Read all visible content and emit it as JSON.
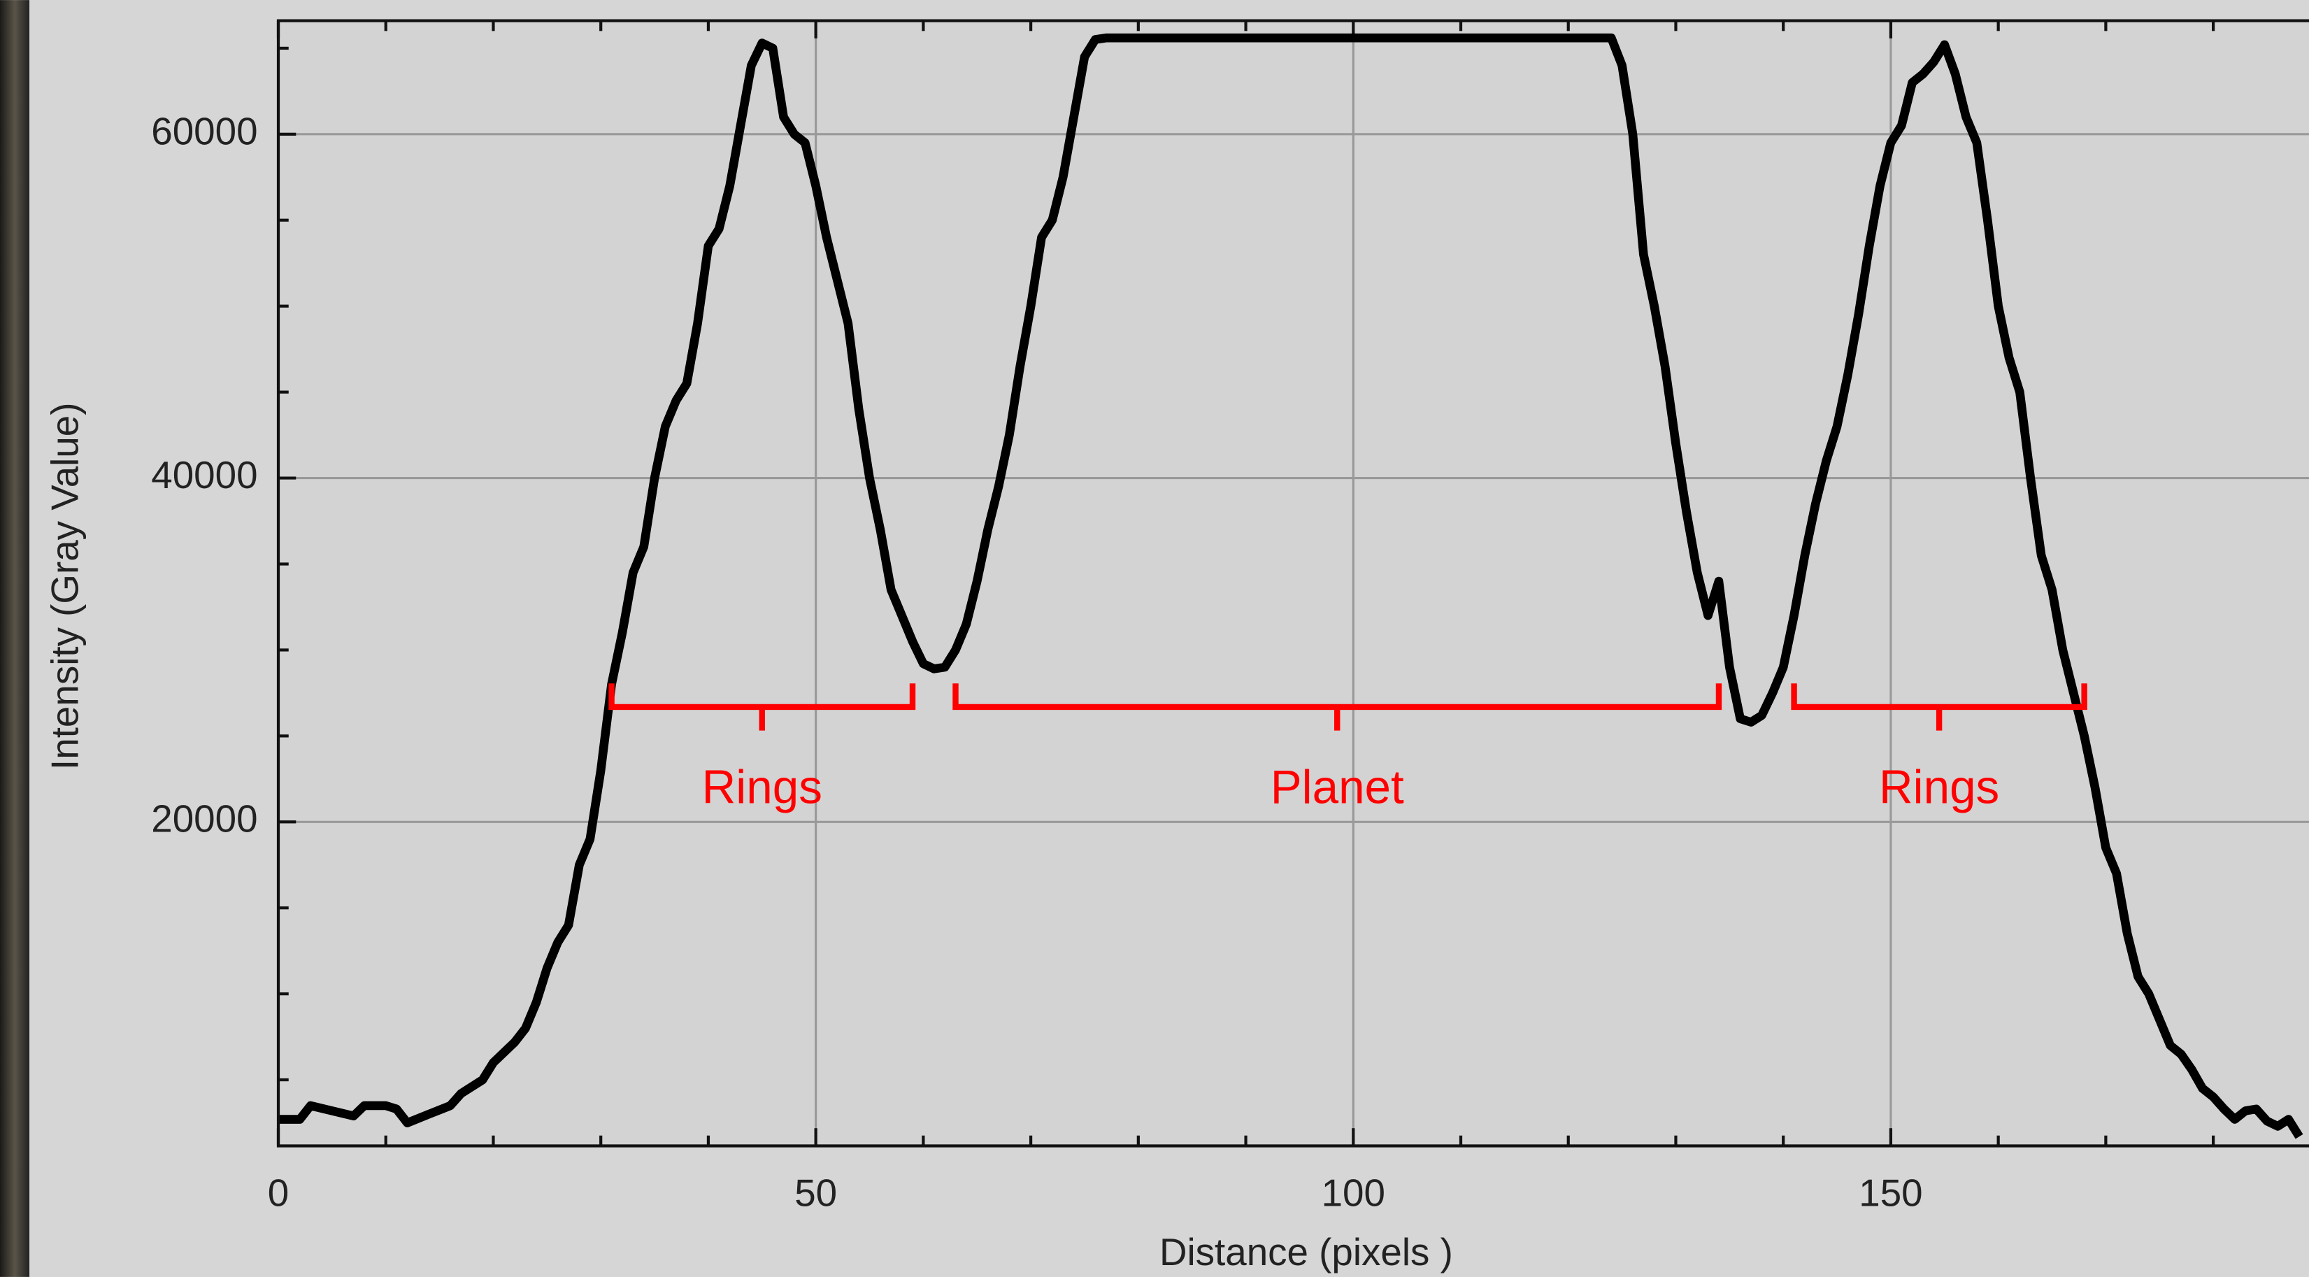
{
  "chart_data": {
    "type": "line",
    "xlabel": "Distance (pixels )",
    "ylabel": "Intensity (Gray Value)",
    "x": [
      0,
      2,
      3,
      5,
      7,
      8,
      10,
      11,
      12,
      14,
      16,
      17,
      19,
      20,
      22,
      23,
      24,
      25,
      26,
      27,
      28,
      29,
      30,
      31,
      32,
      33,
      34,
      35,
      36,
      37,
      38,
      39,
      40,
      41,
      42,
      43,
      44,
      45,
      46,
      47,
      48,
      49,
      50,
      51,
      52,
      53,
      54,
      55,
      56,
      57,
      58,
      59,
      60,
      61,
      62,
      63,
      64,
      65,
      66,
      67,
      68,
      69,
      70,
      71,
      72,
      73,
      74,
      75,
      76,
      77,
      124,
      125,
      126,
      127,
      128,
      129,
      130,
      131,
      132,
      133,
      134,
      135,
      136,
      137,
      138,
      139,
      140,
      141,
      142,
      143,
      144,
      145,
      146,
      147,
      148,
      149,
      150,
      151,
      152,
      153,
      154,
      155,
      156,
      157,
      158,
      159,
      160,
      161,
      162,
      163,
      164,
      165,
      166,
      167,
      168,
      169,
      170,
      171,
      172,
      173,
      174,
      175,
      176,
      177,
      178,
      179,
      180,
      181,
      182,
      183,
      184,
      185,
      186,
      187,
      188
    ],
    "series": [
      {
        "color": "#000000",
        "values": [
          2700,
          2700,
          3500,
          3200,
          2900,
          3500,
          3500,
          3300,
          2500,
          3000,
          3500,
          4200,
          5000,
          6000,
          7200,
          8000,
          9500,
          11500,
          13000,
          14000,
          17500,
          19000,
          23000,
          28000,
          31000,
          34500,
          36000,
          40000,
          43000,
          44500,
          45500,
          49000,
          53500,
          54500,
          57000,
          60500,
          64000,
          65300,
          65000,
          61000,
          60000,
          59500,
          57000,
          54000,
          51500,
          49000,
          44000,
          40000,
          37000,
          33500,
          32000,
          30500,
          29200,
          28900,
          29000,
          30000,
          31500,
          34000,
          37000,
          39500,
          42500,
          46500,
          50000,
          54000,
          55000,
          57500,
          61000,
          64500,
          65500,
          65600,
          65600,
          64000,
          60000,
          53000,
          50000,
          46500,
          42000,
          38000,
          34500,
          32000,
          34000,
          29000,
          26000,
          25800,
          26200,
          27500,
          29000,
          32000,
          35500,
          38500,
          41000,
          43000,
          46000,
          49500,
          53500,
          57000,
          59500,
          60500,
          63000,
          63500,
          64200,
          65200,
          63500,
          61000,
          59500,
          55000,
          50000,
          47000,
          45000,
          40000,
          35500,
          33500,
          30000,
          27500,
          25000,
          22000,
          18500,
          17000,
          13500,
          11000,
          10000,
          8500,
          7000,
          6500,
          5600,
          4500,
          4000,
          3300,
          2700,
          3200,
          3300,
          2600,
          2300,
          2700,
          1700
        ]
      }
    ],
    "xlim": [
      0,
      189
    ],
    "ylim": [
      1160,
      66600
    ],
    "xticks": [
      0,
      50,
      100,
      150
    ],
    "yticks": [
      20000,
      40000,
      60000
    ],
    "x_minor_ticks": [
      10,
      20,
      30,
      40,
      60,
      70,
      80,
      90,
      110,
      120,
      130,
      140,
      160,
      170,
      180
    ],
    "y_minor_ticks": [
      5000,
      10000,
      15000,
      25000,
      30000,
      35000,
      45000,
      50000,
      55000,
      65000
    ],
    "grid": true,
    "annotations": [
      {
        "text": "Rings",
        "range": [
          31,
          59
        ],
        "color": "#ff0000"
      },
      {
        "text": "Planet",
        "range": [
          63,
          134
        ],
        "color": "#ff0000"
      },
      {
        "text": "Rings",
        "range": [
          141,
          168
        ],
        "color": "#ff0000"
      }
    ]
  }
}
